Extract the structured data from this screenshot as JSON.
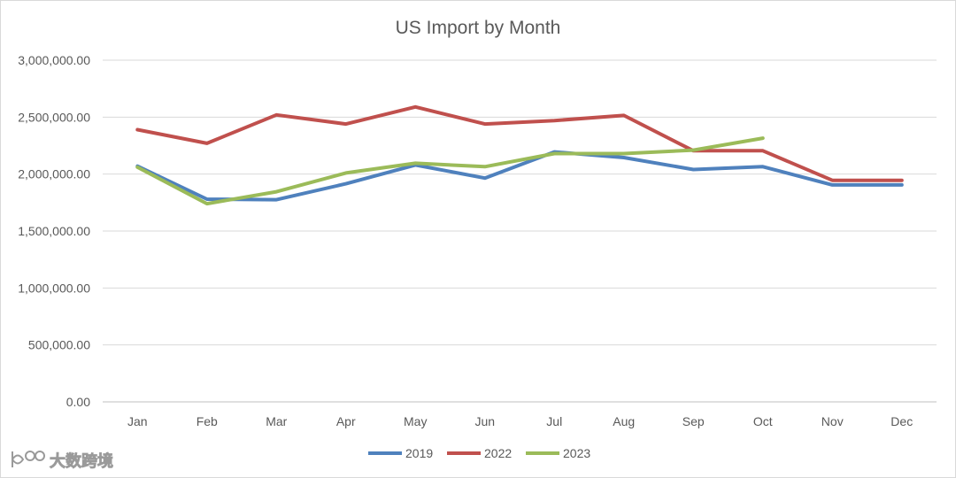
{
  "chart_data": {
    "type": "line",
    "title": "US Import by Month",
    "xlabel": "",
    "ylabel": "",
    "categories": [
      "Jan",
      "Feb",
      "Mar",
      "Apr",
      "May",
      "Jun",
      "Jul",
      "Aug",
      "Sep",
      "Oct",
      "Nov",
      "Dec"
    ],
    "ylim": [
      0,
      3000000
    ],
    "yticks": [
      0,
      500000,
      1000000,
      1500000,
      2000000,
      2500000,
      3000000
    ],
    "ytick_labels": [
      "0.00",
      "500,000.00",
      "1,000,000.00",
      "1,500,000.00",
      "2,000,000.00",
      "2,500,000.00",
      "3,000,000.00"
    ],
    "grid": true,
    "legend_position": "bottom",
    "series": [
      {
        "name": "2019",
        "color": "#4f81bd",
        "values": [
          2070000,
          1780000,
          1775000,
          1915000,
          2080000,
          1965000,
          2195000,
          2145000,
          2040000,
          2065000,
          1905000,
          1905000
        ]
      },
      {
        "name": "2022",
        "color": "#c0504d",
        "values": [
          2390000,
          2270000,
          2520000,
          2440000,
          2590000,
          2440000,
          2470000,
          2515000,
          2205000,
          2205000,
          1945000,
          1945000
        ]
      },
      {
        "name": "2023",
        "color": "#9bbb59",
        "values": [
          2060000,
          1740000,
          1845000,
          2010000,
          2095000,
          2065000,
          2180000,
          2180000,
          2210000,
          2315000,
          null,
          null
        ]
      }
    ]
  },
  "watermark": {
    "text": "大数跨境",
    "icon": "logo-icon"
  }
}
